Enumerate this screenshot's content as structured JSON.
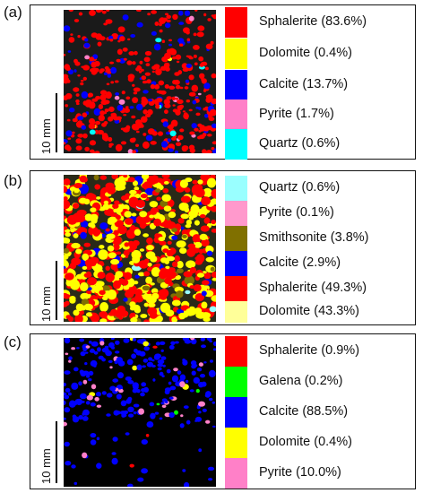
{
  "panels": [
    {
      "label": "(a)",
      "scale_label": "10 mm",
      "background": "#1a1a1a",
      "minerals": [
        {
          "name": "Sphalerite (83.6%)",
          "color": "#ff0000"
        },
        {
          "name": "Dolomite (0.4%)",
          "color": "#ffff00"
        },
        {
          "name": "Calcite (13.7%)",
          "color": "#0000ff"
        },
        {
          "name": "Pyrite (1.7%)",
          "color": "#ff80c8"
        },
        {
          "name": "Quartz (0.6%)",
          "color": "#00ffff"
        }
      ]
    },
    {
      "label": "(b)",
      "scale_label": "10 mm",
      "background": "#2a2a18",
      "minerals": [
        {
          "name": "Quartz (0.6%)",
          "color": "#99ffff"
        },
        {
          "name": "Pyrite (0.1%)",
          "color": "#ff99cc"
        },
        {
          "name": "Smithsonite (3.8%)",
          "color": "#807000"
        },
        {
          "name": "Calcite (2.9%)",
          "color": "#0000ff"
        },
        {
          "name": "Sphalerite (49.3%)",
          "color": "#ff0000"
        },
        {
          "name": "Dolomite (43.3%)",
          "color": "#ffff99"
        }
      ]
    },
    {
      "label": "(c)",
      "scale_label": "10 mm",
      "background": "#000000",
      "minerals": [
        {
          "name": "Sphalerite (0.9%)",
          "color": "#ff0000"
        },
        {
          "name": "Galena (0.2%)",
          "color": "#00ff00"
        },
        {
          "name": "Calcite (88.5%)",
          "color": "#0000ff"
        },
        {
          "name": "Dolomite (0.4%)",
          "color": "#ffff00"
        },
        {
          "name": "Pyrite (10.0%)",
          "color": "#ff80c8"
        }
      ]
    }
  ]
}
